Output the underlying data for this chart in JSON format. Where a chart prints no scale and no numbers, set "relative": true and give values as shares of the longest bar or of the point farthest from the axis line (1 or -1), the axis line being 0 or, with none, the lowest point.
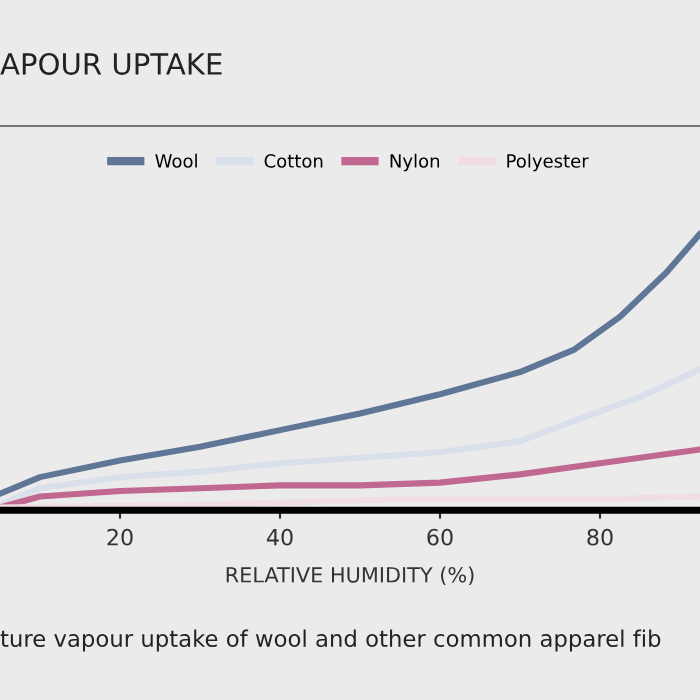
{
  "chart_data": {
    "type": "line",
    "title": "APOUR UPTAKE",
    "xlabel": "RELATIVE HUMIDITY (%)",
    "relative": true,
    "annotations": [
      "ture vapour uptake of wool and other common apparel fib"
    ],
    "xlim": [
      5,
      92.5
    ],
    "xticks": [
      20,
      40,
      60,
      80
    ],
    "legend": "top",
    "marker": "none",
    "line_style": "solid",
    "series": [
      {
        "name": "Wool",
        "color": "#5f7696",
        "x": [
          5,
          10,
          20,
          30,
          40,
          50,
          60,
          70,
          76.7,
          82.5,
          88.3,
          92.5
        ],
        "values": [
          0.06,
          0.12,
          0.18,
          0.23,
          0.29,
          0.35,
          0.42,
          0.5,
          0.58,
          0.7,
          0.86,
          1.0
        ]
      },
      {
        "name": "Cotton",
        "color": "#d9dfeb",
        "x": [
          5,
          10,
          20,
          30,
          40,
          50,
          60,
          70,
          78.3,
          85,
          92.5
        ],
        "values": [
          0.02,
          0.08,
          0.12,
          0.14,
          0.17,
          0.19,
          0.21,
          0.25,
          0.34,
          0.41,
          0.51
        ]
      },
      {
        "name": "Nylon",
        "color": "#c06890",
        "x": [
          5,
          10,
          20,
          30,
          40,
          50,
          60,
          70,
          80,
          92.5
        ],
        "values": [
          0.01,
          0.05,
          0.07,
          0.08,
          0.09,
          0.09,
          0.1,
          0.13,
          0.17,
          0.22
        ]
      },
      {
        "name": "Polyester",
        "color": "#f0dde5",
        "x": [
          5,
          30,
          55,
          80,
          92.5
        ],
        "values": [
          0.01,
          0.02,
          0.04,
          0.04,
          0.05
        ]
      }
    ]
  }
}
